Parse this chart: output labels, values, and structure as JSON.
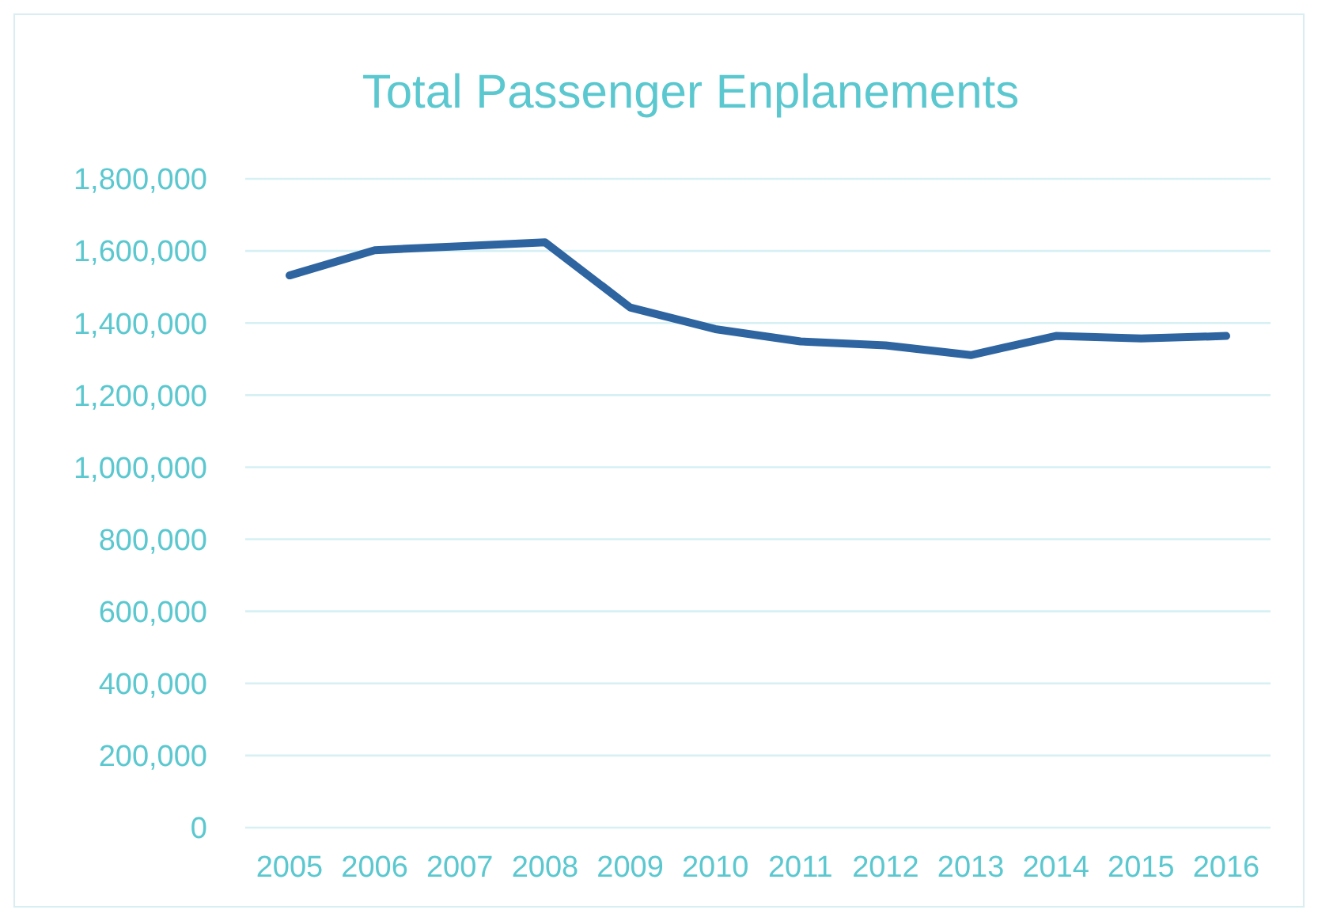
{
  "chart_data": {
    "type": "line",
    "title": "Total Passenger Enplanements",
    "categories": [
      "2005",
      "2006",
      "2007",
      "2008",
      "2009",
      "2010",
      "2011",
      "2012",
      "2013",
      "2014",
      "2015",
      "2016"
    ],
    "series": [
      {
        "color": "#2e64a0",
        "values": [
          1532000,
          1602000,
          1613000,
          1624000,
          1443000,
          1383000,
          1349000,
          1338000,
          1311000,
          1364000,
          1357000,
          1364000
        ]
      }
    ],
    "ylim": [
      0,
      1800000
    ],
    "yticks": [
      {
        "value": 0,
        "label": "0"
      },
      {
        "value": 200000,
        "label": "200,000"
      },
      {
        "value": 400000,
        "label": "400,000"
      },
      {
        "value": 600000,
        "label": "600,000"
      },
      {
        "value": 800000,
        "label": "800,000"
      },
      {
        "value": 1000000,
        "label": "1,000,000"
      },
      {
        "value": 1200000,
        "label": "1,200,000"
      },
      {
        "value": 1400000,
        "label": "1,400,000"
      },
      {
        "value": 1600000,
        "label": "1,600,000"
      },
      {
        "value": 1800000,
        "label": "1,800,000"
      }
    ],
    "grid": "y",
    "marker": "none",
    "line_style": "solid"
  }
}
